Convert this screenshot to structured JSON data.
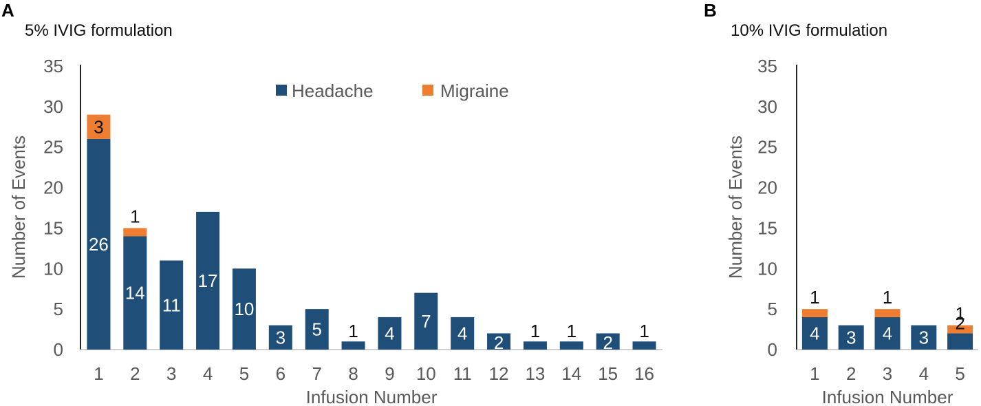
{
  "colors": {
    "Headache": "#1f4e79",
    "Migraine": "#ed7d31",
    "axis": "#262626"
  },
  "chart_data": [
    {
      "panel": "A",
      "type": "bar",
      "stacked": true,
      "title": "5% IVIG formulation",
      "xlabel": "Infusion Number",
      "ylabel": "Number of Events",
      "ylim": [
        0,
        35
      ],
      "yticks": [
        0,
        5,
        10,
        15,
        20,
        25,
        30,
        35
      ],
      "grid": false,
      "legend": "top-center",
      "categories": [
        "1",
        "2",
        "3",
        "4",
        "5",
        "6",
        "7",
        "8",
        "9",
        "10",
        "11",
        "12",
        "13",
        "14",
        "15",
        "16"
      ],
      "series": [
        {
          "name": "Headache",
          "values": [
            26,
            14,
            11,
            17,
            10,
            3,
            5,
            1,
            4,
            7,
            4,
            2,
            1,
            1,
            2,
            1
          ]
        },
        {
          "name": "Migraine",
          "values": [
            3,
            1,
            0,
            0,
            0,
            0,
            0,
            0,
            0,
            0,
            0,
            0,
            0,
            0,
            0,
            0
          ]
        }
      ]
    },
    {
      "panel": "B",
      "type": "bar",
      "stacked": true,
      "title": "10% IVIG formulation",
      "xlabel": "Infusion Number",
      "ylabel": "Number of Events",
      "ylim": [
        0,
        35
      ],
      "yticks": [
        0,
        5,
        10,
        15,
        20,
        25,
        30,
        35
      ],
      "grid": false,
      "legend": "none",
      "categories": [
        "1",
        "2",
        "3",
        "4",
        "5"
      ],
      "series": [
        {
          "name": "Headache",
          "values": [
            4,
            3,
            4,
            3,
            2
          ]
        },
        {
          "name": "Migraine",
          "values": [
            1,
            0,
            1,
            0,
            1
          ]
        }
      ]
    }
  ]
}
